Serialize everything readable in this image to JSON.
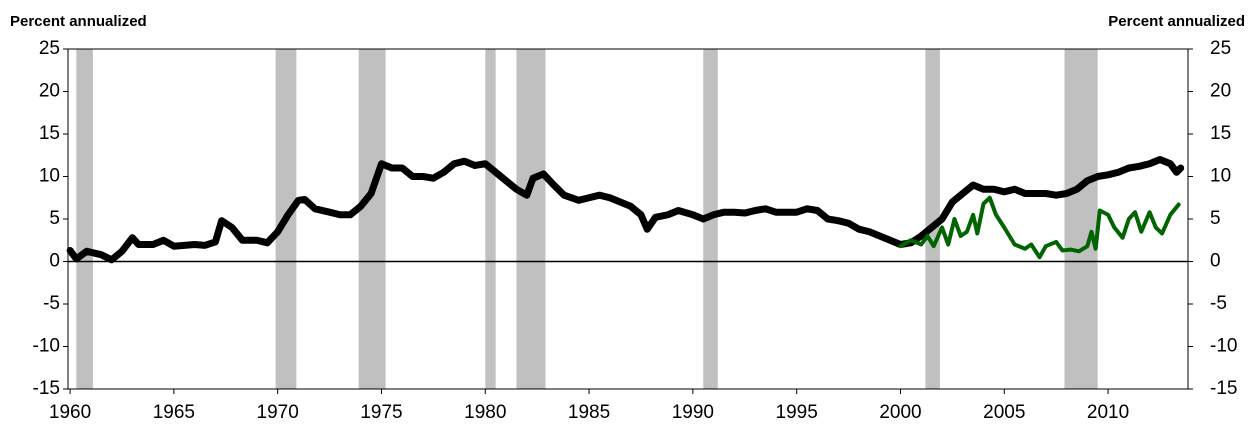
{
  "chart_data": {
    "type": "line",
    "y_label": "Percent annualized",
    "y2_label": "Percent annualized",
    "xlim": [
      1959.9,
      2013.85
    ],
    "xticks": [
      1960,
      1965,
      1970,
      1975,
      1980,
      1985,
      1990,
      1995,
      2000,
      2005,
      2010
    ],
    "ylim": [
      -15,
      25
    ],
    "yticks": [
      -15,
      -10,
      -5,
      0,
      5,
      10,
      15,
      20,
      25
    ],
    "y2lim": [
      -15,
      25
    ],
    "y2ticks": [
      -15,
      -10,
      -5,
      0,
      5,
      10,
      15,
      20,
      25
    ],
    "recession_color": "#c0c0c0",
    "recessions": [
      [
        1960.3,
        1961.1
      ],
      [
        1969.9,
        1970.9
      ],
      [
        1973.9,
        1975.2
      ],
      [
        1980.0,
        1980.5
      ],
      [
        1981.5,
        1982.9
      ],
      [
        1990.5,
        1991.2
      ],
      [
        2001.2,
        2001.9
      ],
      [
        2007.9,
        2009.5
      ]
    ],
    "series": [
      {
        "color": "#000000",
        "width": 7,
        "x": [
          1960.0,
          1960.3,
          1960.8,
          1961.5,
          1962.0,
          1962.5,
          1963.0,
          1963.3,
          1964,
          1964.5,
          1965,
          1966,
          1966.5,
          1967,
          1967.3,
          1967.8,
          1968.3,
          1969,
          1969.5,
          1970,
          1970.5,
          1971,
          1971.3,
          1971.8,
          1972.5,
          1973,
          1973.5,
          1974,
          1974.5,
          1975,
          1975.5,
          1976,
          1976.5,
          1977,
          1977.5,
          1978,
          1978.5,
          1979,
          1979.5,
          1980,
          1980.5,
          1981,
          1981.5,
          1982,
          1982.3,
          1982.8,
          1983.3,
          1983.8,
          1984.5,
          1985,
          1985.5,
          1986,
          1986.5,
          1987,
          1987.5,
          1987.8,
          1988.2,
          1988.8,
          1989.3,
          1990,
          1990.5,
          1991,
          1991.5,
          1992,
          1992.5,
          1993,
          1993.5,
          1994,
          1995,
          1995.5,
          1996,
          1996.5,
          1997,
          1997.5,
          1998,
          1998.5,
          1999,
          1999.5,
          2000,
          2000.5,
          2001,
          2001.5,
          2002,
          2002.5,
          2003,
          2003.5,
          2004,
          2004.5,
          2005,
          2005.5,
          2006,
          2006.5,
          2007,
          2007.5,
          2008,
          2008.5,
          2009,
          2009.5,
          2010,
          2010.5,
          2011,
          2011.5,
          2012,
          2012.5,
          2013,
          2013.3,
          2013.5
        ],
        "values": [
          1.3,
          0.3,
          1.2,
          0.8,
          0.2,
          1.2,
          2.8,
          2.0,
          2.0,
          2.5,
          1.8,
          2.0,
          1.9,
          2.3,
          4.8,
          4.0,
          2.5,
          2.5,
          2.2,
          3.5,
          5.5,
          7.2,
          7.3,
          6.2,
          5.8,
          5.5,
          5.5,
          6.5,
          8.0,
          11.5,
          11.0,
          11.0,
          10.0,
          10.0,
          9.8,
          10.5,
          11.5,
          11.8,
          11.3,
          11.5,
          10.5,
          9.5,
          8.5,
          7.8,
          9.8,
          10.3,
          9.0,
          7.8,
          7.2,
          7.5,
          7.8,
          7.5,
          7.0,
          6.5,
          5.5,
          3.8,
          5.2,
          5.5,
          6.0,
          5.5,
          5.0,
          5.5,
          5.8,
          5.8,
          5.7,
          6.0,
          6.2,
          5.8,
          5.8,
          6.2,
          6.0,
          5.0,
          4.8,
          4.5,
          3.8,
          3.5,
          3.0,
          2.5,
          2.0,
          2.2,
          3.0,
          4.0,
          5.0,
          7.0,
          8.0,
          9.0,
          8.5,
          8.5,
          8.2,
          8.5,
          8.0,
          8.0,
          8.0,
          7.8,
          8.0,
          8.5,
          9.5,
          10.0,
          10.2,
          10.5,
          11.0,
          11.2,
          11.5,
          12.0,
          11.5,
          10.5,
          11.0
        ]
      },
      {
        "color": "#006400",
        "width": 4,
        "x": [
          2000,
          2000.5,
          2001,
          2001.3,
          2001.6,
          2002,
          2002.3,
          2002.6,
          2002.9,
          2003.2,
          2003.5,
          2003.7,
          2004,
          2004.3,
          2004.6,
          2005,
          2005.5,
          2006,
          2006.3,
          2006.7,
          2007,
          2007.5,
          2007.8,
          2008.2,
          2008.6,
          2009,
          2009.2,
          2009.4,
          2009.6,
          2010,
          2010.3,
          2010.7,
          2011,
          2011.3,
          2011.6,
          2012,
          2012.3,
          2012.6,
          2013,
          2013.4
        ],
        "values": [
          1.8,
          2.5,
          2.0,
          3.0,
          1.8,
          4.0,
          2.0,
          5.0,
          3.0,
          3.5,
          5.5,
          3.3,
          6.8,
          7.5,
          5.5,
          4.0,
          2.0,
          1.5,
          2.0,
          0.5,
          1.8,
          2.3,
          1.3,
          1.4,
          1.2,
          1.8,
          3.5,
          1.5,
          6.0,
          5.5,
          4.0,
          2.8,
          5.0,
          5.8,
          3.5,
          5.8,
          4.0,
          3.3,
          5.5,
          6.7
        ]
      }
    ]
  }
}
